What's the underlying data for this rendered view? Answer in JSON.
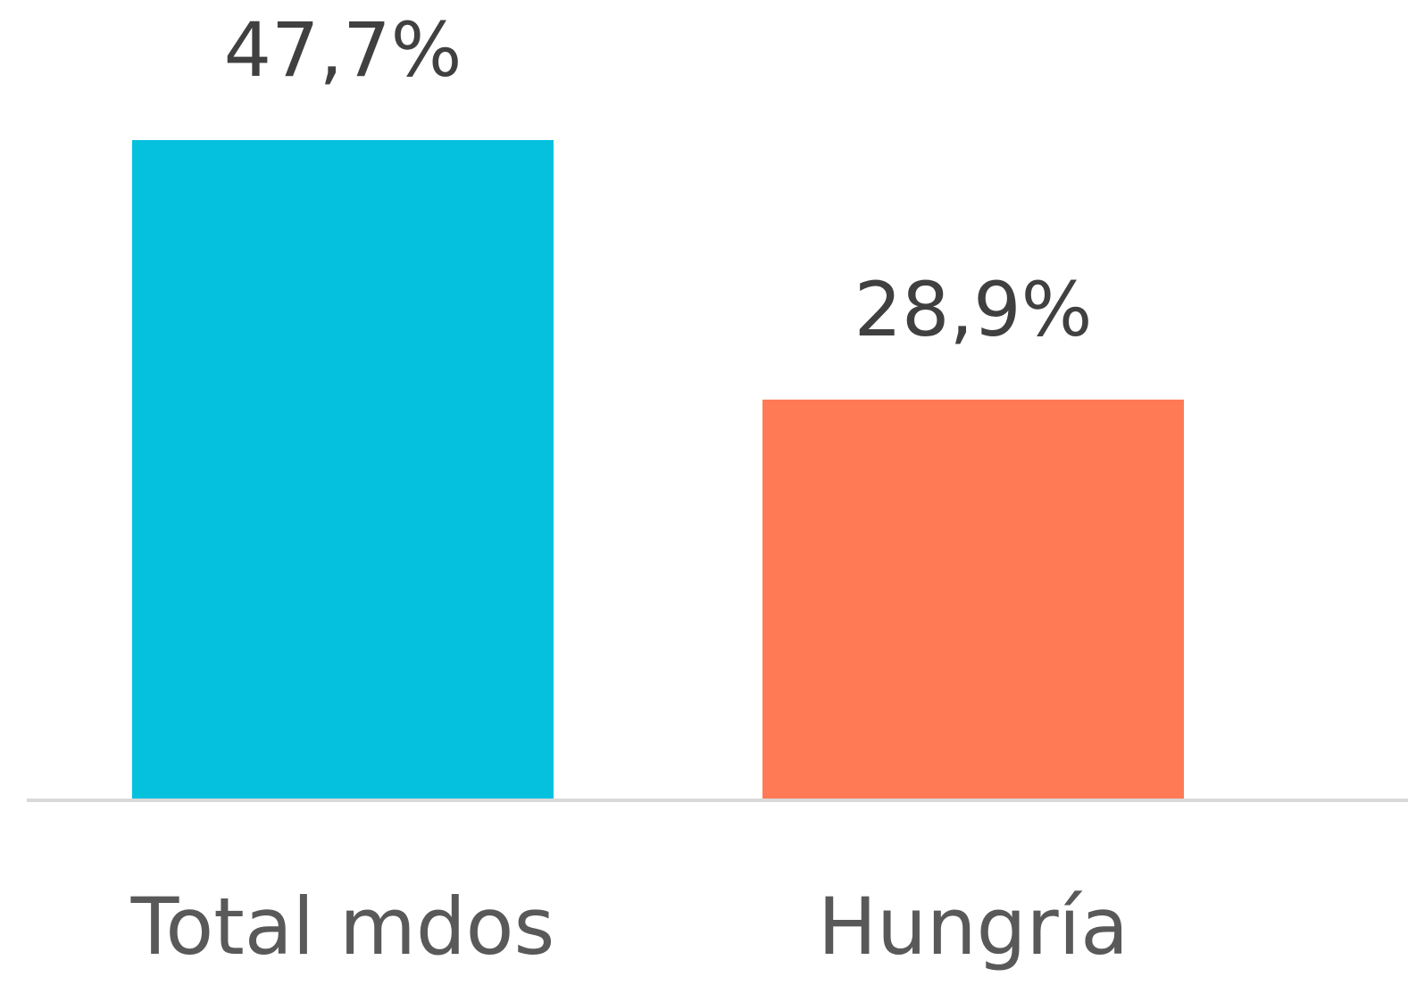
{
  "chart_data": {
    "type": "bar",
    "categories": [
      "Total mdos",
      "Hungría"
    ],
    "values": [
      47.7,
      28.9
    ],
    "value_labels": [
      "47,7%",
      "28,9%"
    ],
    "colors": [
      "#05c1de",
      "#ff7a55"
    ]
  }
}
